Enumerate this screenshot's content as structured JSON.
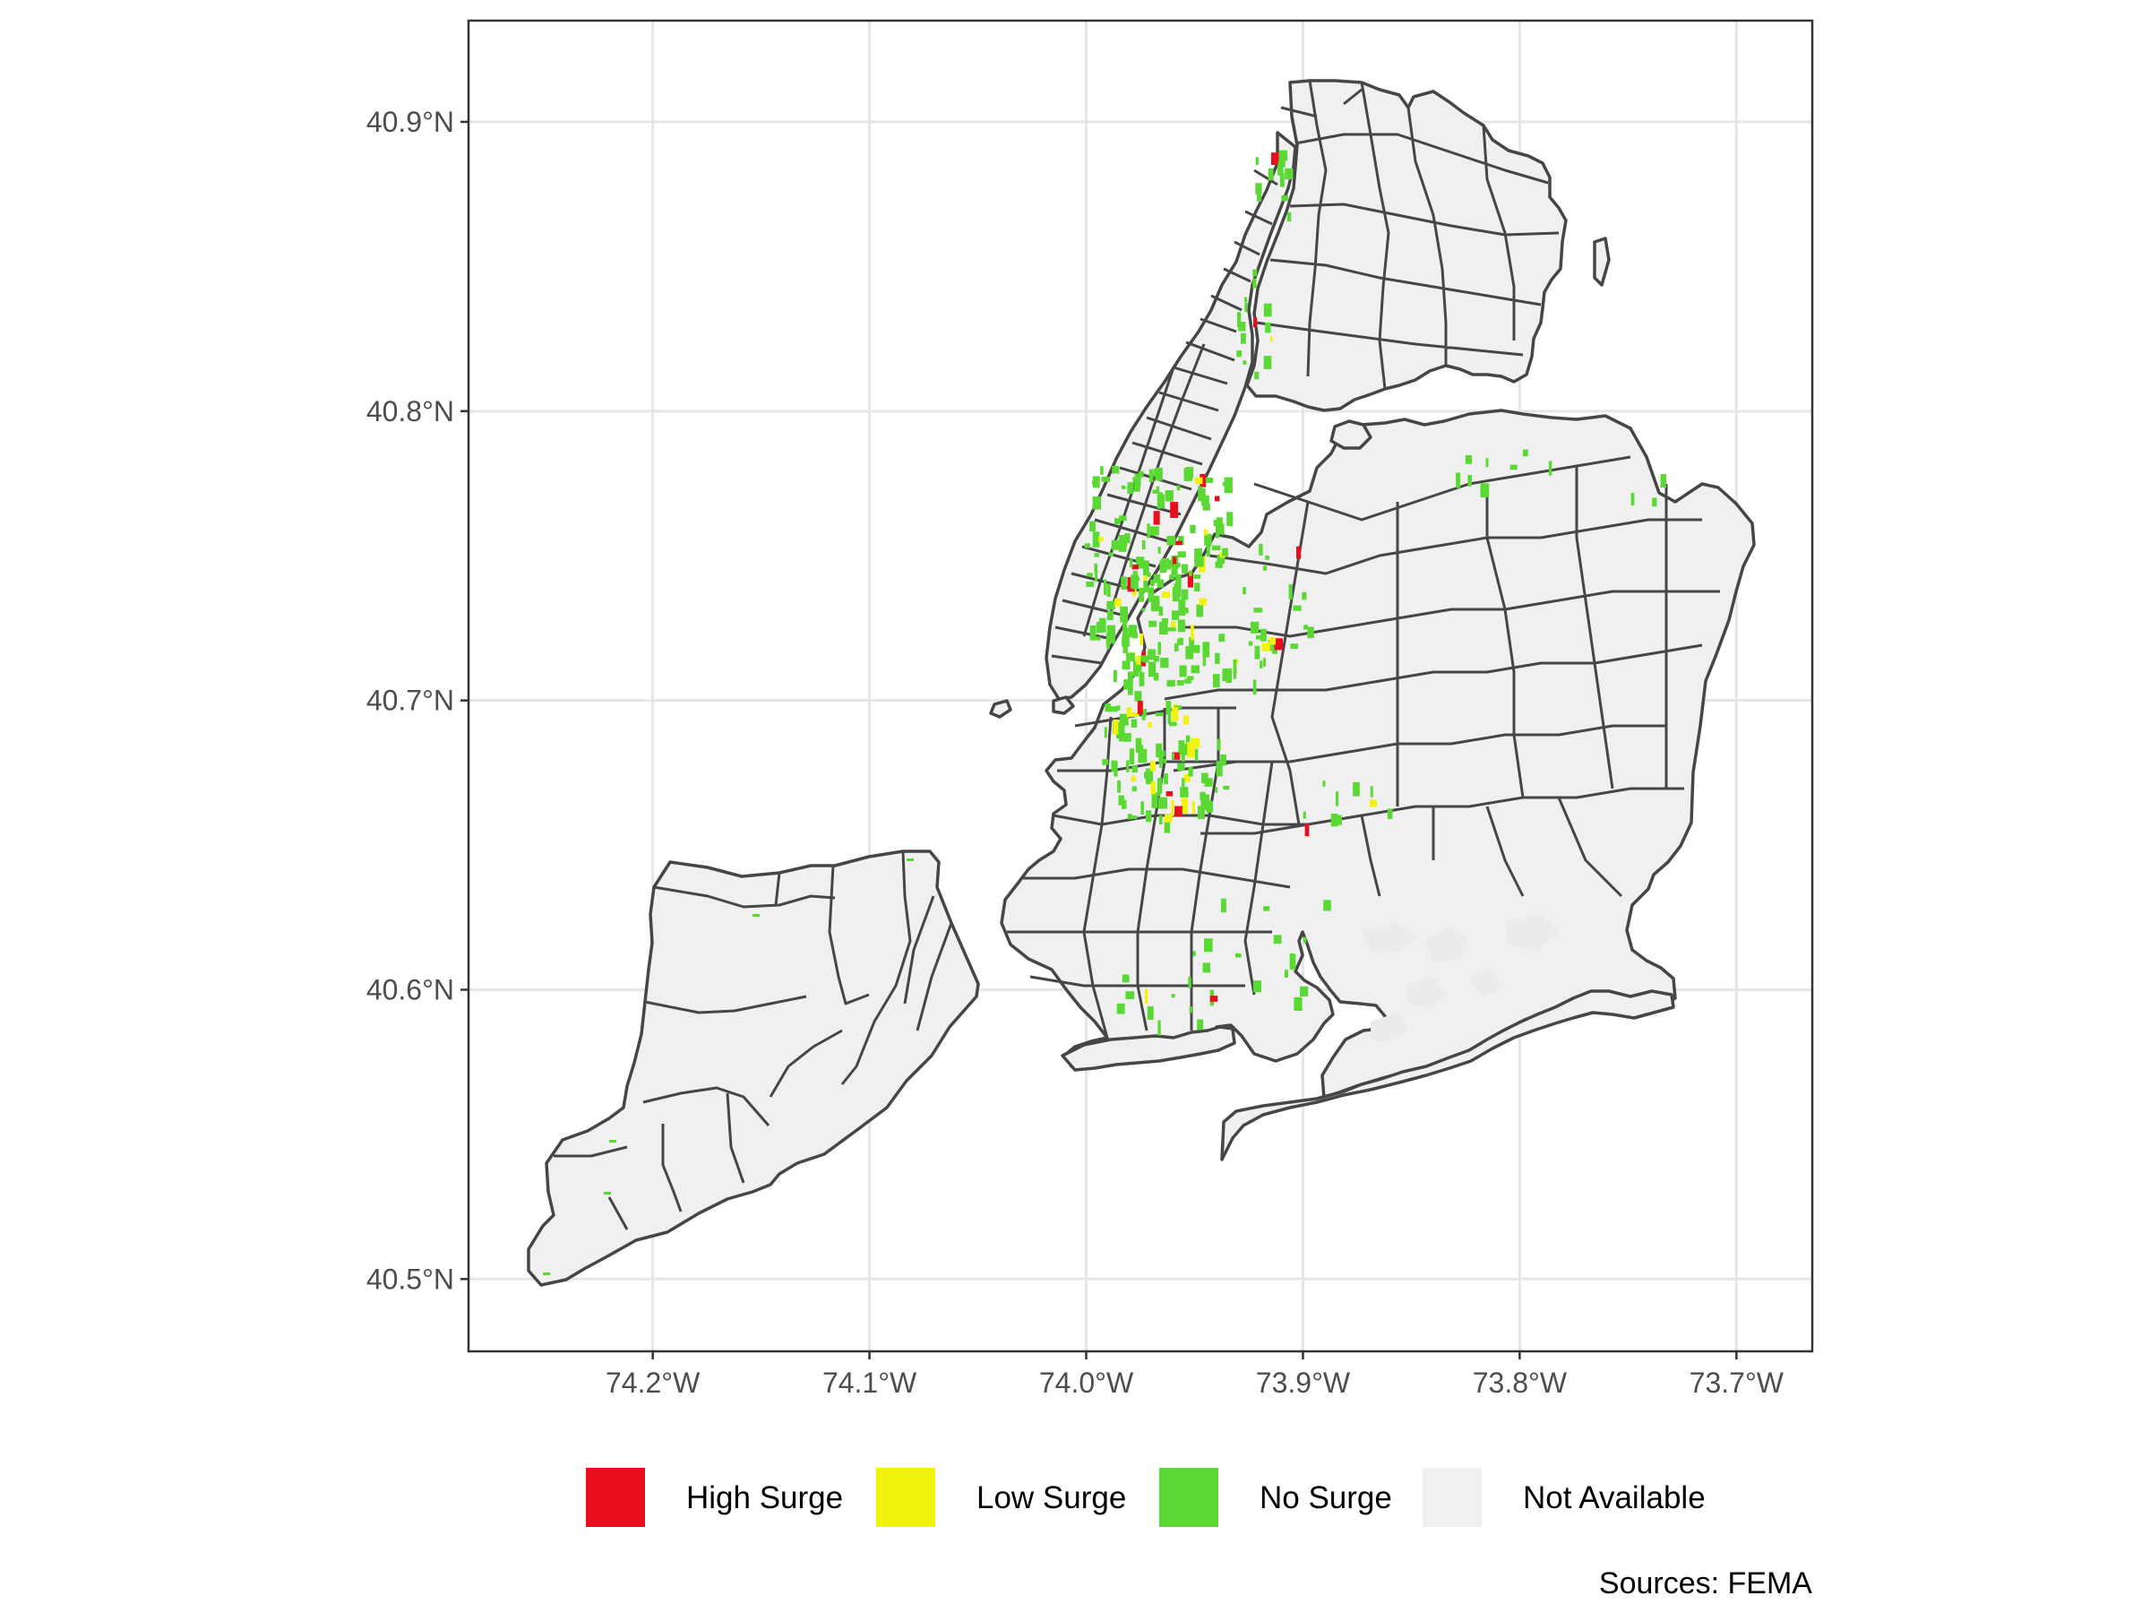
{
  "map": {
    "x_axis": {
      "range": [
        -74.285,
        -73.665
      ],
      "ticks": [
        {
          "value": -74.2,
          "label": "74.2°W"
        },
        {
          "value": -74.1,
          "label": "74.1°W"
        },
        {
          "value": -74.0,
          "label": "74.0°W"
        },
        {
          "value": -73.9,
          "label": "73.9°W"
        },
        {
          "value": -73.8,
          "label": "73.8°W"
        },
        {
          "value": -73.7,
          "label": "73.7°W"
        }
      ]
    },
    "y_axis": {
      "range": [
        40.475,
        40.935
      ],
      "ticks": [
        {
          "value": 40.5,
          "label": "40.5°N"
        },
        {
          "value": 40.6,
          "label": "40.6°N"
        },
        {
          "value": 40.7,
          "label": "40.7°N"
        },
        {
          "value": 40.8,
          "label": "40.8°N"
        },
        {
          "value": 40.9,
          "label": "40.9°N"
        }
      ]
    },
    "grid": true,
    "fill_colors": {
      "high_surge": "#e8101e",
      "low_surge": "#f2f20d",
      "no_surge": "#5ad934",
      "not_available": "#f0f0f0",
      "boundary": "#464646",
      "panel_border": "#333333"
    },
    "legend": {
      "position": "bottom",
      "items": [
        {
          "key": "high_surge",
          "label": "High Surge",
          "color": "#e8101e"
        },
        {
          "key": "low_surge",
          "label": "Low Surge",
          "color": "#f2f20d"
        },
        {
          "key": "no_surge",
          "label": "No Surge",
          "color": "#5ad934"
        },
        {
          "key": "not_available",
          "label": "Not Available",
          "color": "#f0f0f0"
        }
      ]
    },
    "caption": "Sources: FEMA"
  }
}
